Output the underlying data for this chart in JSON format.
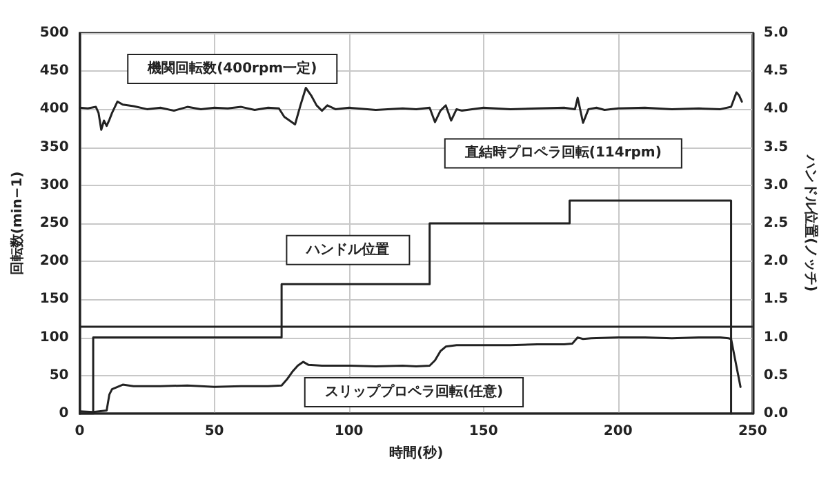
{
  "chart_data": {
    "type": "line",
    "xlabel": "時間(秒)",
    "ylabel": "回転数(min−1)",
    "y2label": "ハンドル位置(ノッチ)",
    "xlim": [
      0,
      250
    ],
    "xticks": [
      0,
      50,
      100,
      150,
      200,
      250
    ],
    "ylim": [
      0,
      500
    ],
    "yticks": [
      0,
      50,
      100,
      150,
      200,
      250,
      300,
      350,
      400,
      450,
      500
    ],
    "y2lim": [
      0,
      5
    ],
    "y2ticks": [
      {
        "value": 0,
        "label": "0.0"
      },
      {
        "value": 0.5,
        "label": "0.5"
      },
      {
        "value": 1,
        "label": "1.0"
      },
      {
        "value": 1.5,
        "label": "1.5"
      },
      {
        "value": 2,
        "label": "2.0"
      },
      {
        "value": 2.5,
        "label": "2.5"
      },
      {
        "value": 3,
        "label": "3.0"
      },
      {
        "value": 3.5,
        "label": "3.5"
      },
      {
        "value": 4,
        "label": "4.0"
      },
      {
        "value": 4.5,
        "label": "4.5"
      },
      {
        "value": 5,
        "label": "5.0"
      }
    ],
    "grid": true,
    "marker": "none",
    "line_style": "solid",
    "series": [
      {
        "name": "機関回転数(400rpm一定)",
        "color": "#222222",
        "x": [
          0,
          3,
          6,
          7,
          8,
          9,
          10,
          11,
          12,
          14,
          16,
          20,
          25,
          30,
          35,
          40,
          45,
          50,
          55,
          60,
          65,
          70,
          74,
          76,
          78,
          80,
          82,
          84,
          86,
          88,
          90,
          92,
          95,
          100,
          110,
          120,
          125,
          130,
          132,
          134,
          136,
          138,
          140,
          142,
          150,
          160,
          170,
          180,
          184,
          185,
          187,
          189,
          192,
          195,
          200,
          210,
          220,
          230,
          238,
          242,
          244,
          245,
          246
        ],
        "values": [
          402,
          401,
          403,
          395,
          373,
          385,
          378,
          386,
          395,
          410,
          406,
          404,
          400,
          402,
          398,
          403,
          400,
          402,
          401,
          403,
          399,
          402,
          401,
          390,
          385,
          380,
          405,
          428,
          418,
          405,
          398,
          405,
          400,
          402,
          399,
          401,
          400,
          402,
          383,
          398,
          405,
          385,
          400,
          398,
          402,
          400,
          401,
          402,
          400,
          415,
          382,
          400,
          402,
          399,
          401,
          402,
          400,
          401,
          400,
          403,
          422,
          418,
          410
        ]
      },
      {
        "name": "スリッププロペラ回転(任意)",
        "color": "#222222",
        "x": [
          0,
          5,
          10,
          11,
          12,
          14,
          16,
          20,
          30,
          40,
          50,
          60,
          70,
          75,
          77,
          79,
          81,
          83,
          85,
          90,
          100,
          110,
          120,
          125,
          130,
          132,
          134,
          136,
          140,
          150,
          160,
          170,
          180,
          183,
          185,
          187,
          190,
          200,
          210,
          220,
          230,
          238,
          241,
          242,
          245.5
        ],
        "values": [
          3,
          2,
          4,
          25,
          32,
          35,
          38,
          36,
          36,
          37,
          35,
          36,
          36,
          37,
          45,
          55,
          63,
          68,
          64,
          63,
          63,
          62,
          63,
          62,
          63,
          70,
          82,
          88,
          90,
          90,
          90,
          91,
          91,
          92,
          100,
          98,
          99,
          100,
          100,
          99,
          100,
          100,
          99,
          98,
          35
        ]
      },
      {
        "type": "step",
        "name": "ハンドル位置",
        "axis": "y2",
        "color": "#222222",
        "x": [
          0,
          5,
          75,
          130,
          182,
          242
        ],
        "values": [
          0,
          1,
          1.7,
          2.5,
          2.8,
          0
        ]
      }
    ],
    "ref_lines": [
      {
        "axis": "y",
        "value": 114,
        "color": "#222222",
        "line_style": "solid"
      }
    ],
    "annotations": [
      "直結時プロペラ回転(114rpm)"
    ]
  }
}
